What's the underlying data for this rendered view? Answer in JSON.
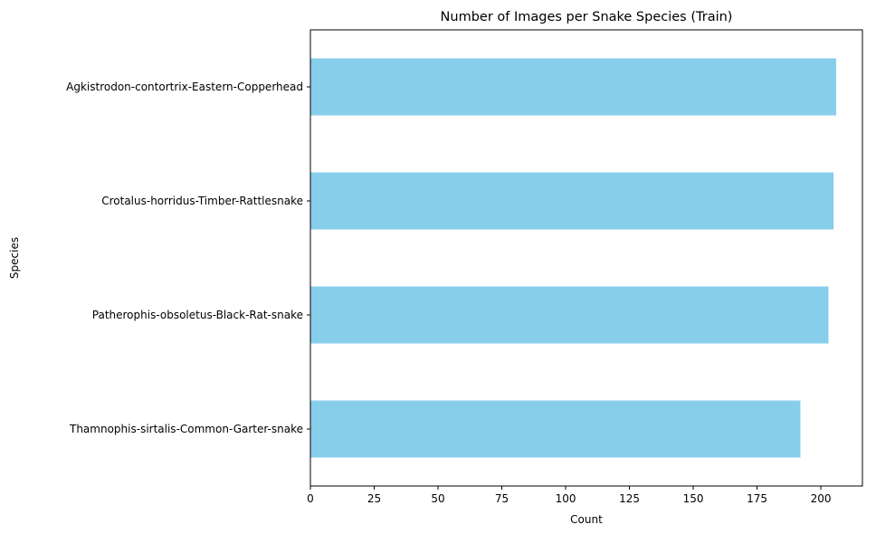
{
  "chart_data": {
    "type": "bar",
    "orientation": "horizontal",
    "title": "Number of Images per Snake Species (Train)",
    "xlabel": "Count",
    "ylabel": "Species",
    "categories": [
      "Agkistrodon-contortrix-Eastern-Copperhead",
      "Crotalus-horridus-Timber-Rattlesnake",
      "Patherophis-obsoletus-Black-Rat-snake",
      "Thamnophis-sirtalis-Common-Garter-snake"
    ],
    "values": [
      206,
      205,
      203,
      192
    ],
    "xlim": [
      0,
      216.3
    ],
    "xticks": [
      0,
      25,
      50,
      75,
      100,
      125,
      150,
      175,
      200
    ],
    "grid": false,
    "bar_color": "#87CEEB"
  }
}
